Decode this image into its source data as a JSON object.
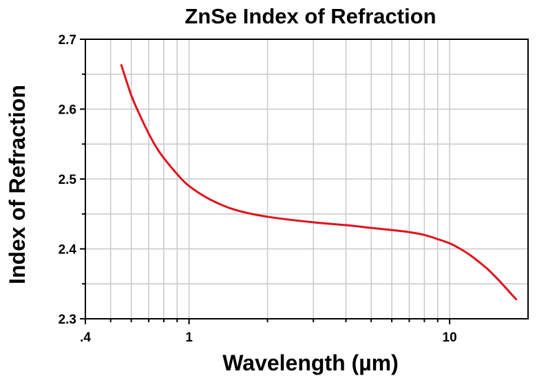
{
  "chart_data": {
    "type": "line",
    "title": "ZnSe Index of Refraction",
    "xlabel": "Wavelength (µm)",
    "ylabel": "Index of Refraction",
    "xscale": "log",
    "xlim": [
      0.4,
      20
    ],
    "ylim": [
      2.3,
      2.7
    ],
    "grid": true,
    "xticks": [
      {
        "value": 0.4,
        "label": ".4"
      },
      {
        "value": 1,
        "label": "1"
      },
      {
        "value": 10,
        "label": "10"
      }
    ],
    "yticks": [
      {
        "value": 2.3,
        "label": "2.3"
      },
      {
        "value": 2.4,
        "label": "2.4"
      },
      {
        "value": 2.5,
        "label": "2.5"
      },
      {
        "value": 2.6,
        "label": "2.6"
      },
      {
        "value": 2.7,
        "label": "2.7"
      }
    ],
    "series": [
      {
        "name": "ZnSe",
        "color": "#e0121a",
        "x": [
          0.55,
          0.6,
          0.65,
          0.7,
          0.75,
          0.8,
          0.9,
          1.0,
          1.2,
          1.5,
          2.0,
          3.0,
          4.0,
          5.0,
          6.0,
          7.0,
          8.0,
          9.0,
          10.0,
          11.0,
          12.0,
          13.0,
          14.0,
          15.0,
          16.0,
          17.0,
          18.0
        ],
        "y": [
          2.663,
          2.62,
          2.59,
          2.565,
          2.545,
          2.53,
          2.507,
          2.49,
          2.471,
          2.456,
          2.446,
          2.438,
          2.434,
          2.43,
          2.427,
          2.424,
          2.42,
          2.414,
          2.408,
          2.4,
          2.391,
          2.381,
          2.371,
          2.36,
          2.349,
          2.338,
          2.328
        ]
      }
    ]
  }
}
